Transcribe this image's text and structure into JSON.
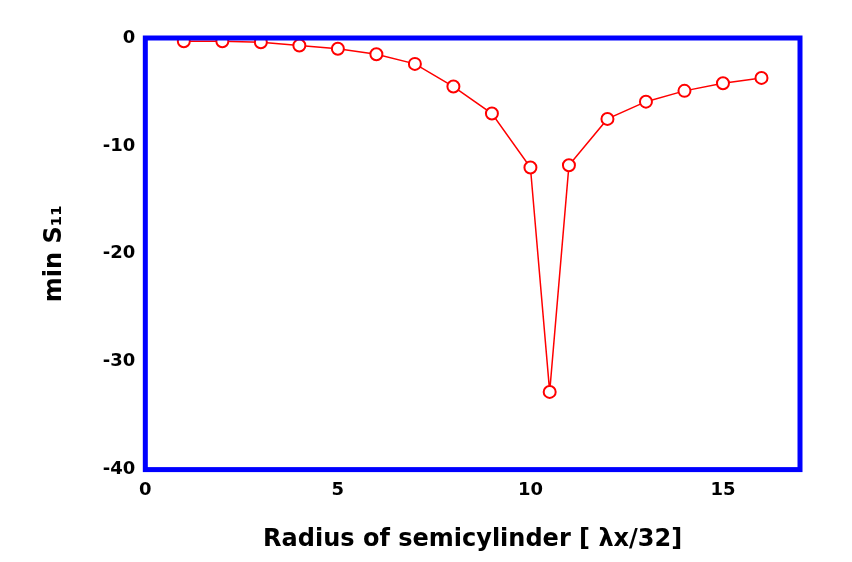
{
  "chart_data": {
    "type": "line",
    "x_label": "Radius of semicylinder [ λx/32]",
    "y_label": "min S₁₁",
    "x": [
      1,
      2,
      3,
      4,
      5,
      6,
      7,
      8,
      9,
      10,
      10.5,
      11,
      12,
      13,
      14,
      15,
      16
    ],
    "values": [
      -0.3,
      -0.3,
      -0.4,
      -0.7,
      -1.0,
      -1.5,
      -2.4,
      -4.5,
      -7.0,
      -12.0,
      -32.8,
      -11.8,
      -7.5,
      -5.9,
      -4.9,
      -4.2,
      -3.7
    ],
    "color": "#ff0000",
    "marker": "circle",
    "line_style": "solid",
    "xlim": [
      0,
      17
    ],
    "xticks": [
      0,
      5,
      10,
      15
    ],
    "ylim": [
      -40,
      0
    ],
    "yticks": [
      -40,
      -30,
      -20,
      -10,
      0
    ],
    "grid": false
  }
}
